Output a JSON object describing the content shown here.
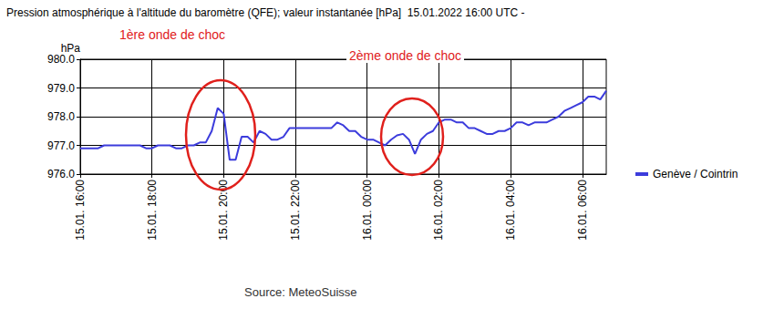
{
  "chart_data": {
    "type": "line",
    "title": "Pression atmosphérique à l'altitude du baromètre (QFE); valeur instantanée [hPa]  15.01.2022 16:00 UTC -",
    "y_label": "hPa",
    "source": "Source: MeteoSuisse",
    "annotations": [
      "1ère onde de choc",
      "2ème onde de choc"
    ],
    "categories": [
      "15.01. 16:00",
      null,
      null,
      null,
      null,
      null,
      null,
      null,
      null,
      null,
      null,
      null,
      "15.01. 18:00",
      null,
      null,
      null,
      null,
      null,
      null,
      null,
      null,
      null,
      null,
      null,
      "15.01. 20:00",
      null,
      null,
      null,
      null,
      null,
      null,
      null,
      null,
      null,
      null,
      null,
      "15.01. 22:00",
      null,
      null,
      null,
      null,
      null,
      null,
      null,
      null,
      null,
      null,
      null,
      "16.01. 00:00",
      null,
      null,
      null,
      null,
      null,
      null,
      null,
      null,
      null,
      null,
      null,
      "16.01. 02:00",
      null,
      null,
      null,
      null,
      null,
      null,
      null,
      null,
      null,
      null,
      null,
      "16.01. 04:00",
      null,
      null,
      null,
      null,
      null,
      null,
      null,
      null,
      null,
      null,
      null,
      "16.01. 06:00",
      null,
      null,
      null,
      null
    ],
    "series": [
      {
        "name": "Genève / Cointrin",
        "color": "#3c3cdc",
        "marker": "none",
        "line_style": "solid",
        "values": [
          976.9,
          976.9,
          976.9,
          976.9,
          977.0,
          977.0,
          977.0,
          977.0,
          977.0,
          977.0,
          977.0,
          976.9,
          976.9,
          977.0,
          977.0,
          977.0,
          976.9,
          976.9,
          977.0,
          977.0,
          977.1,
          977.1,
          977.5,
          978.3,
          978.1,
          976.5,
          976.5,
          977.3,
          977.3,
          977.1,
          977.5,
          977.4,
          977.2,
          977.2,
          977.3,
          977.6,
          977.6,
          977.6,
          977.6,
          977.6,
          977.6,
          977.6,
          977.6,
          977.8,
          977.7,
          977.5,
          977.5,
          977.3,
          977.2,
          977.2,
          977.1,
          977.0,
          977.2,
          977.35,
          977.4,
          977.2,
          976.7,
          977.2,
          977.4,
          977.5,
          977.8,
          977.9,
          977.9,
          977.8,
          977.8,
          977.6,
          977.6,
          977.5,
          977.4,
          977.4,
          977.5,
          977.5,
          977.6,
          977.8,
          977.8,
          977.7,
          977.8,
          977.8,
          977.8,
          977.9,
          978.0,
          978.2,
          978.3,
          978.4,
          978.5,
          978.7,
          978.7,
          978.6,
          978.9
        ]
      }
    ],
    "ylim": [
      976,
      980
    ],
    "yticks": [
      {
        "value": 976,
        "label": "976.0"
      },
      {
        "value": 977,
        "label": "977.0"
      },
      {
        "value": 978,
        "label": "978.0"
      },
      {
        "value": 979,
        "label": "979.0"
      },
      {
        "value": 980,
        "label": "980.0"
      }
    ],
    "grid": true,
    "legend": "right"
  }
}
